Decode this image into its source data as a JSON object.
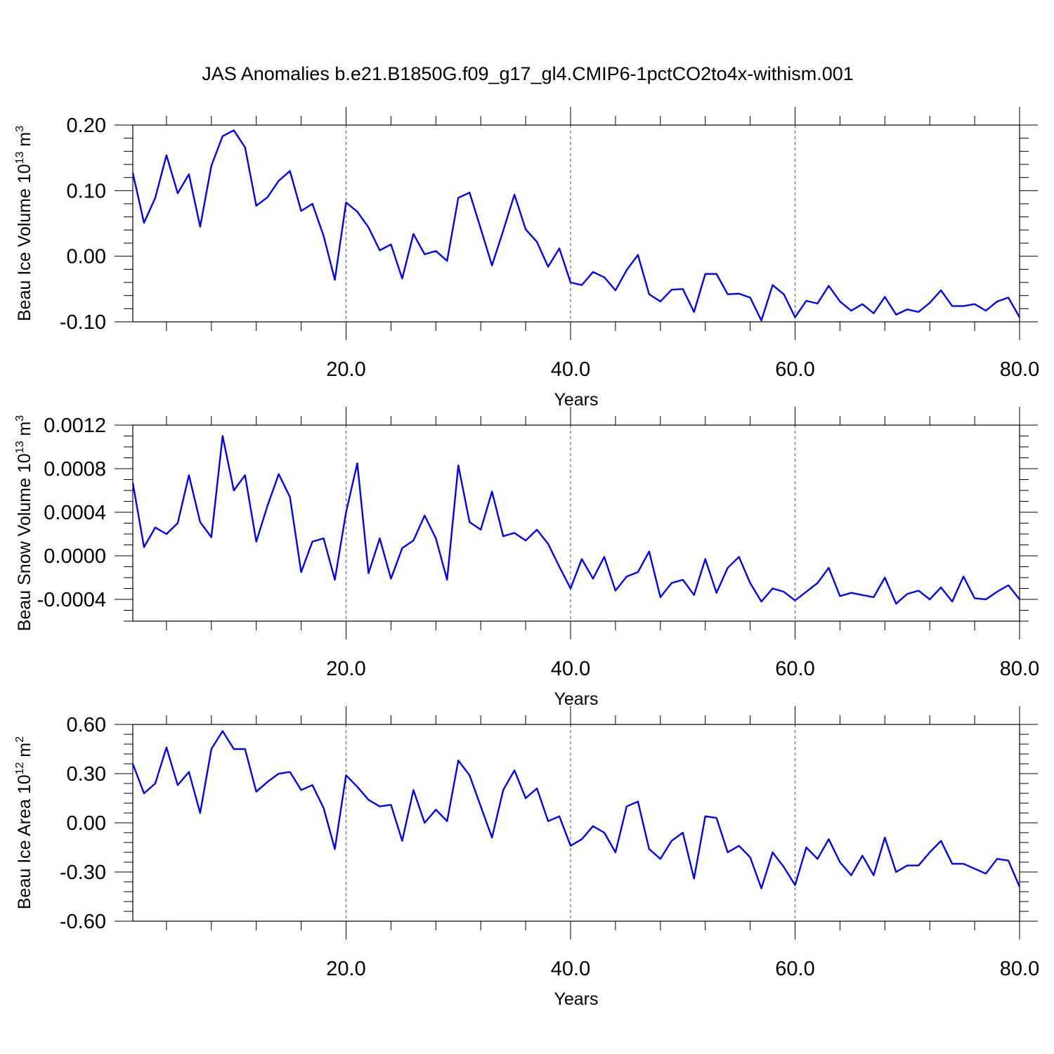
{
  "title": "JAS Anomalies b.e21.B1850G.f09_g17_gl4.CMIP6-1pctCO2to4x-withism.001",
  "colors": {
    "line": "#0000ff",
    "axis": "#000000",
    "grid": "#555555"
  },
  "chart_data": [
    {
      "type": "line",
      "ylabel_main": "Beau Ice Volume 10",
      "ylabel_exp": "13",
      "ylabel_unit": " m",
      "ylabel_unit_exp": "3",
      "xlabel": "Years",
      "xlim": [
        1,
        80
      ],
      "ylim": [
        -0.1,
        0.2
      ],
      "yticks": [
        -0.1,
        0.0,
        0.1,
        0.2
      ],
      "yticklabels": [
        "-0.10",
        "0.00",
        "0.10",
        "0.20"
      ],
      "yminor_step": 0.02,
      "xticks": [
        20,
        40,
        60,
        80
      ],
      "xticklabels": [
        "20.0",
        "40.0",
        "60.0",
        "80.0"
      ],
      "xminor_step": 4,
      "grid_x": [
        20,
        40,
        60
      ],
      "x_start": 1,
      "series": [
        {
          "values": [
            0.127,
            0.051,
            0.089,
            0.154,
            0.096,
            0.125,
            0.045,
            0.138,
            0.183,
            0.192,
            0.166,
            0.077,
            0.09,
            0.115,
            0.13,
            0.069,
            0.08,
            0.031,
            -0.036,
            0.082,
            0.068,
            0.044,
            0.009,
            0.018,
            -0.034,
            0.034,
            0.003,
            0.008,
            -0.007,
            0.089,
            0.097,
            0.042,
            -0.014,
            0.039,
            0.094,
            0.041,
            0.022,
            -0.016,
            0.012,
            -0.04,
            -0.044,
            -0.024,
            -0.032,
            -0.052,
            -0.021,
            0.002,
            -0.058,
            -0.069,
            -0.051,
            -0.05,
            -0.085,
            -0.027,
            -0.027,
            -0.058,
            -0.057,
            -0.063,
            -0.098,
            -0.044,
            -0.058,
            -0.093,
            -0.068,
            -0.072,
            -0.045,
            -0.069,
            -0.083,
            -0.073,
            -0.087,
            -0.062,
            -0.089,
            -0.081,
            -0.085,
            -0.071,
            -0.052,
            -0.076,
            -0.076,
            -0.073,
            -0.083,
            -0.069,
            -0.063,
            -0.093
          ]
        }
      ]
    },
    {
      "type": "line",
      "ylabel_main": "Beau Snow Volume 10",
      "ylabel_exp": "13",
      "ylabel_unit": " m",
      "ylabel_unit_exp": "3",
      "xlabel": "Years",
      "xlim": [
        1,
        80
      ],
      "ylim": [
        -0.0006,
        0.0012
      ],
      "yticks": [
        -0.0004,
        0.0,
        0.0004,
        0.0008,
        0.0012
      ],
      "yticklabels": [
        "-0.0004",
        "0.0000",
        "0.0004",
        "0.0008",
        "0.0012"
      ],
      "yminor_step": 0.0001,
      "xticks": [
        20,
        40,
        60,
        80
      ],
      "xticklabels": [
        "20.0",
        "40.0",
        "60.0",
        "80.0"
      ],
      "xminor_step": 4,
      "grid_x": [
        20,
        40,
        60
      ],
      "x_start": 1,
      "series": [
        {
          "values": [
            0.00067,
            8e-05,
            0.00026,
            0.0002,
            0.0003,
            0.00074,
            0.00031,
            0.00017,
            0.0011,
            0.0006,
            0.00074,
            0.00013,
            0.00046,
            0.00075,
            0.00054,
            -0.00015,
            0.00013,
            0.00016,
            -0.00022,
            0.0004,
            0.00085,
            -0.00016,
            0.00016,
            -0.00021,
            7e-05,
            0.00014,
            0.00037,
            0.00016,
            -0.00022,
            0.00083,
            0.00031,
            0.00024,
            0.00059,
            0.00018,
            0.00021,
            0.00014,
            0.00024,
            0.00011,
            -0.0001,
            -0.0003,
            -3e-05,
            -0.00021,
            -1e-05,
            -0.00032,
            -0.00019,
            -0.00015,
            4e-05,
            -0.00038,
            -0.00025,
            -0.00022,
            -0.00036,
            -3e-05,
            -0.00034,
            -0.00011,
            -1e-05,
            -0.00025,
            -0.00042,
            -0.0003,
            -0.00033,
            -0.00041,
            -0.00033,
            -0.00025,
            -0.00011,
            -0.00037,
            -0.00034,
            -0.00036,
            -0.00038,
            -0.0002,
            -0.00044,
            -0.00035,
            -0.00032,
            -0.0004,
            -0.00029,
            -0.00042,
            -0.00019,
            -0.00039,
            -0.0004,
            -0.00033,
            -0.00027,
            -0.0004
          ]
        }
      ]
    },
    {
      "type": "line",
      "ylabel_main": "Beau Ice Area 10",
      "ylabel_exp": "12",
      "ylabel_unit": " m",
      "ylabel_unit_exp": "2",
      "xlabel": "Years",
      "xlim": [
        1,
        80
      ],
      "ylim": [
        -0.6,
        0.6
      ],
      "yticks": [
        -0.6,
        -0.3,
        0.0,
        0.3,
        0.6
      ],
      "yticklabels": [
        "-0.60",
        "-0.30",
        "0.00",
        "0.30",
        "0.60"
      ],
      "yminor_step": 0.06,
      "xticks": [
        20,
        40,
        60,
        80
      ],
      "xticklabels": [
        "20.0",
        "40.0",
        "60.0",
        "80.0"
      ],
      "xminor_step": 4,
      "grid_x": [
        20,
        40,
        60
      ],
      "x_start": 1,
      "series": [
        {
          "values": [
            0.36,
            0.18,
            0.24,
            0.46,
            0.23,
            0.31,
            0.06,
            0.45,
            0.56,
            0.45,
            0.45,
            0.19,
            0.25,
            0.3,
            0.31,
            0.2,
            0.23,
            0.09,
            -0.16,
            0.29,
            0.22,
            0.14,
            0.1,
            0.11,
            -0.11,
            0.2,
            0.0,
            0.08,
            0.01,
            0.38,
            0.29,
            0.1,
            -0.09,
            0.2,
            0.32,
            0.15,
            0.21,
            0.01,
            0.04,
            -0.14,
            -0.1,
            -0.02,
            -0.06,
            -0.18,
            0.1,
            0.13,
            -0.16,
            -0.22,
            -0.11,
            -0.06,
            -0.34,
            0.04,
            0.03,
            -0.18,
            -0.14,
            -0.21,
            -0.4,
            -0.18,
            -0.27,
            -0.38,
            -0.15,
            -0.22,
            -0.1,
            -0.24,
            -0.32,
            -0.2,
            -0.32,
            -0.09,
            -0.3,
            -0.26,
            -0.26,
            -0.18,
            -0.11,
            -0.25,
            -0.25,
            -0.28,
            -0.31,
            -0.22,
            -0.23,
            -0.39
          ]
        }
      ]
    }
  ]
}
